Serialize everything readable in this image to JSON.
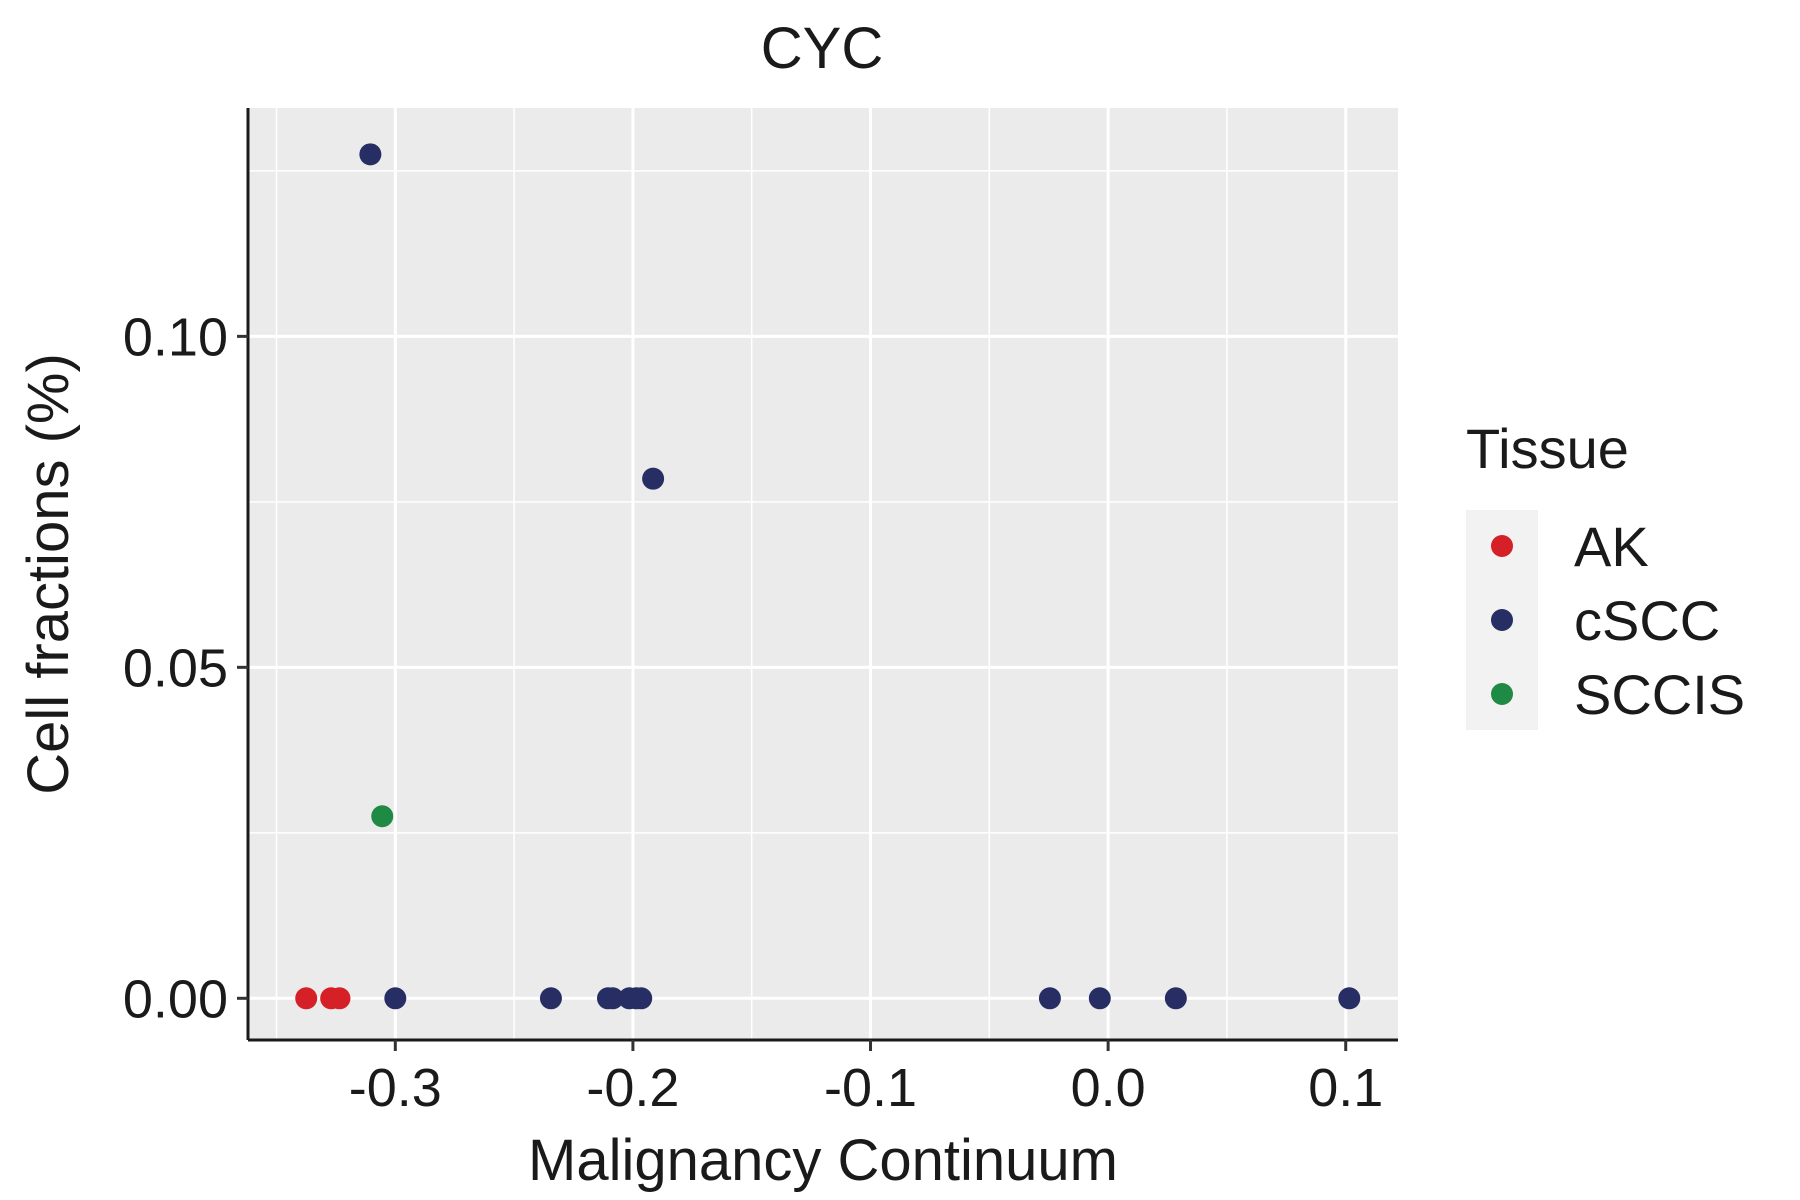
{
  "chart_data": {
    "type": "scatter",
    "title": "CYC",
    "xlabel": "Malignancy Continuum",
    "ylabel": "Cell fractions (%)",
    "xlim": [
      -0.362,
      0.122
    ],
    "ylim": [
      -0.0063,
      0.1345
    ],
    "x_ticks": [
      -0.3,
      -0.2,
      -0.1,
      0.0,
      0.1
    ],
    "x_tick_labels": [
      "-0.3",
      "-0.2",
      "-0.1",
      "0.0",
      "0.1"
    ],
    "y_ticks": [
      0.0,
      0.05,
      0.1
    ],
    "y_tick_labels": [
      "0.00",
      "0.05",
      "0.10"
    ],
    "grid": true,
    "legend_position": "right",
    "legend": {
      "title": "Tissue",
      "entries": [
        {
          "name": "AK",
          "color": "#d62027"
        },
        {
          "name": "cSCC",
          "color": "#262e63"
        },
        {
          "name": "SCCIS",
          "color": "#1e8a43"
        }
      ]
    },
    "series": [
      {
        "name": "AK",
        "color": "#d62027",
        "points": [
          {
            "x": -0.3375,
            "y": 0.0
          },
          {
            "x": -0.327,
            "y": 0.0
          },
          {
            "x": -0.3235,
            "y": 0.0
          }
        ]
      },
      {
        "name": "cSCC",
        "color": "#262e63",
        "points": [
          {
            "x": -0.3105,
            "y": 0.1275
          },
          {
            "x": -0.3,
            "y": 0.0
          },
          {
            "x": -0.2345,
            "y": 0.0
          },
          {
            "x": -0.2105,
            "y": 0.0
          },
          {
            "x": -0.2085,
            "y": 0.0
          },
          {
            "x": -0.2015,
            "y": 0.0
          },
          {
            "x": -0.1985,
            "y": 0.0
          },
          {
            "x": -0.1965,
            "y": 0.0
          },
          {
            "x": -0.1915,
            "y": 0.0785
          },
          {
            "x": -0.0245,
            "y": 0.0
          },
          {
            "x": -0.0035,
            "y": 0.0
          },
          {
            "x": 0.0285,
            "y": 0.0
          },
          {
            "x": 0.1015,
            "y": 0.0
          }
        ]
      },
      {
        "name": "SCCIS",
        "color": "#1e8a43",
        "points": [
          {
            "x": -0.3055,
            "y": 0.0275
          }
        ]
      }
    ]
  }
}
